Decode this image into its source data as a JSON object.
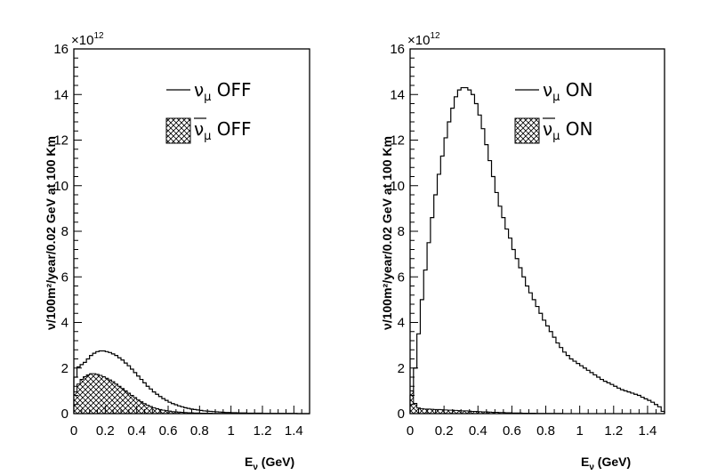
{
  "chart_data": [
    {
      "type": "histogram",
      "panel": "left",
      "exponent_label": "×10",
      "exponent_power": "12",
      "xlabel": "E",
      "xlabel_sub": "ν",
      "xlabel_unit": " (GeV)",
      "ylabel": "ν/100m²/year/0.02 GeV at 100 Km",
      "xlim": [
        0,
        1.5
      ],
      "ylim": [
        0,
        16
      ],
      "xticks": [
        "0",
        "0.2",
        "0.4",
        "0.6",
        "0.8",
        "1",
        "1.2",
        "1.4"
      ],
      "yticks": [
        "0",
        "2",
        "4",
        "6",
        "8",
        "10",
        "12",
        "14",
        "16"
      ],
      "bin_width": 0.02,
      "series": [
        {
          "name": "ν_μ OFF",
          "legend_symbol": "ν",
          "legend_sub": "μ",
          "legend_state": " OFF",
          "style": "line",
          "values": [
            1.6,
            2.05,
            2.15,
            2.25,
            2.4,
            2.55,
            2.65,
            2.72,
            2.75,
            2.75,
            2.72,
            2.68,
            2.62,
            2.55,
            2.45,
            2.35,
            2.22,
            2.1,
            1.95,
            1.8,
            1.65,
            1.5,
            1.35,
            1.2,
            1.08,
            0.95,
            0.85,
            0.75,
            0.66,
            0.58,
            0.5,
            0.44,
            0.39,
            0.34,
            0.3,
            0.26,
            0.23,
            0.2,
            0.18,
            0.16,
            0.14,
            0.12,
            0.11,
            0.1,
            0.09,
            0.08,
            0.07,
            0.06,
            0.05,
            0.05,
            0.04,
            0.04,
            0.03,
            0.03,
            0.03,
            0.02,
            0.02,
            0.02,
            0.02,
            0.02,
            0.01,
            0.01,
            0.01,
            0.01,
            0.01,
            0.01,
            0.01,
            0.01,
            0.01,
            0.01,
            0.01,
            0.0,
            0.0,
            0.0,
            0.0
          ]
        },
        {
          "name": "ν̄_μ OFF",
          "legend_symbol": "ν",
          "legend_sub": "μ",
          "legend_state": " OFF",
          "style": "hatched",
          "values": [
            0.95,
            1.3,
            1.5,
            1.62,
            1.7,
            1.75,
            1.75,
            1.72,
            1.68,
            1.62,
            1.55,
            1.48,
            1.4,
            1.3,
            1.2,
            1.1,
            1.0,
            0.9,
            0.8,
            0.7,
            0.6,
            0.52,
            0.44,
            0.37,
            0.31,
            0.26,
            0.22,
            0.18,
            0.15,
            0.13,
            0.11,
            0.09,
            0.08,
            0.07,
            0.06,
            0.05,
            0.04,
            0.04,
            0.03,
            0.03,
            0.02,
            0.02,
            0.02,
            0.02,
            0.01,
            0.01,
            0.01,
            0.01,
            0.01,
            0.01,
            0.0,
            0.0,
            0.0,
            0.0,
            0.0,
            0.0,
            0.0,
            0.0,
            0.0,
            0.0,
            0.0,
            0.0,
            0.0,
            0.0,
            0.0,
            0.0,
            0.0,
            0.0,
            0.0,
            0.0,
            0.0,
            0.0,
            0.0,
            0.0,
            0.0
          ]
        }
      ]
    },
    {
      "type": "histogram",
      "panel": "right",
      "exponent_label": "×10",
      "exponent_power": "12",
      "xlabel": "E",
      "xlabel_sub": "ν",
      "xlabel_unit": " (GeV)",
      "ylabel": "ν/100m²/year/0.02 GeV at 100 Km",
      "xlim": [
        0,
        1.5
      ],
      "ylim": [
        0,
        16
      ],
      "xticks": [
        "0",
        "0.2",
        "0.4",
        "0.6",
        "0.8",
        "1",
        "1.2",
        "1.4"
      ],
      "yticks": [
        "0",
        "2",
        "4",
        "6",
        "8",
        "10",
        "12",
        "14",
        "16"
      ],
      "bin_width": 0.02,
      "series": [
        {
          "name": "ν_μ ON",
          "legend_symbol": "ν",
          "legend_sub": "μ",
          "legend_state": " ON",
          "style": "line",
          "values": [
            0.8,
            2.0,
            3.5,
            5.0,
            6.3,
            7.5,
            8.6,
            9.6,
            10.5,
            11.3,
            12.1,
            12.8,
            13.4,
            13.9,
            14.2,
            14.3,
            14.3,
            14.2,
            14.0,
            13.6,
            13.1,
            12.5,
            11.8,
            11.1,
            10.4,
            9.7,
            9.1,
            8.6,
            8.1,
            7.7,
            7.2,
            6.8,
            6.4,
            6.0,
            5.6,
            5.3,
            5.0,
            4.7,
            4.4,
            4.1,
            3.85,
            3.6,
            3.35,
            3.1,
            2.9,
            2.7,
            2.55,
            2.4,
            2.3,
            2.2,
            2.1,
            2.0,
            1.9,
            1.8,
            1.7,
            1.6,
            1.5,
            1.42,
            1.35,
            1.28,
            1.2,
            1.12,
            1.05,
            1.0,
            0.95,
            0.9,
            0.85,
            0.8,
            0.72,
            0.65,
            0.58,
            0.5,
            0.4,
            0.3,
            0.1
          ]
        },
        {
          "name": "ν̄_μ ON",
          "legend_symbol": "ν",
          "legend_sub": "μ",
          "legend_state": " ON",
          "style": "hatched",
          "values": [
            1.0,
            0.45,
            0.25,
            0.22,
            0.2,
            0.2,
            0.19,
            0.18,
            0.18,
            0.17,
            0.16,
            0.15,
            0.15,
            0.14,
            0.13,
            0.12,
            0.12,
            0.11,
            0.1,
            0.1,
            0.09,
            0.08,
            0.08,
            0.07,
            0.06,
            0.06,
            0.05,
            0.05,
            0.04,
            0.04,
            0.03,
            0.03,
            0.03,
            0.02,
            0.02,
            0.02,
            0.02,
            0.01,
            0.01,
            0.01,
            0.01,
            0.01,
            0.01,
            0.01,
            0.01,
            0.0,
            0.0,
            0.0,
            0.0,
            0.0,
            0.0,
            0.0,
            0.0,
            0.0,
            0.0,
            0.0,
            0.0,
            0.0,
            0.0,
            0.0,
            0.0,
            0.0,
            0.0,
            0.0,
            0.0,
            0.0,
            0.0,
            0.0,
            0.0,
            0.0,
            0.0,
            0.0,
            0.0,
            0.0,
            0.0
          ]
        }
      ]
    }
  ]
}
